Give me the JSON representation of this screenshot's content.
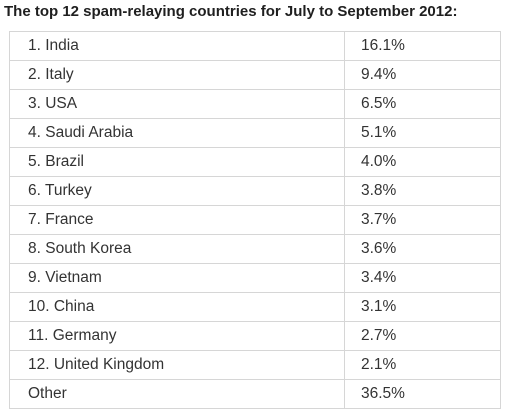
{
  "title": "The top 12 spam-relaying countries for July to September 2012:",
  "table": {
    "rows": [
      {
        "country": "1. India",
        "percent": "16.1%"
      },
      {
        "country": "2. Italy",
        "percent": "9.4%"
      },
      {
        "country": "3. USA",
        "percent": "6.5%"
      },
      {
        "country": "4. Saudi Arabia",
        "percent": "5.1%"
      },
      {
        "country": "5. Brazil",
        "percent": "4.0%"
      },
      {
        "country": "6. Turkey",
        "percent": "3.8%"
      },
      {
        "country": "7. France",
        "percent": "3.7%"
      },
      {
        "country": "8. South Korea",
        "percent": "3.6%"
      },
      {
        "country": "9. Vietnam",
        "percent": "3.4%"
      },
      {
        "country": "10. China",
        "percent": "3.1%"
      },
      {
        "country": "11. Germany",
        "percent": "2.7%"
      },
      {
        "country": "12. United Kingdom",
        "percent": "2.1%"
      },
      {
        "country": "Other",
        "percent": "36.5%"
      }
    ]
  }
}
